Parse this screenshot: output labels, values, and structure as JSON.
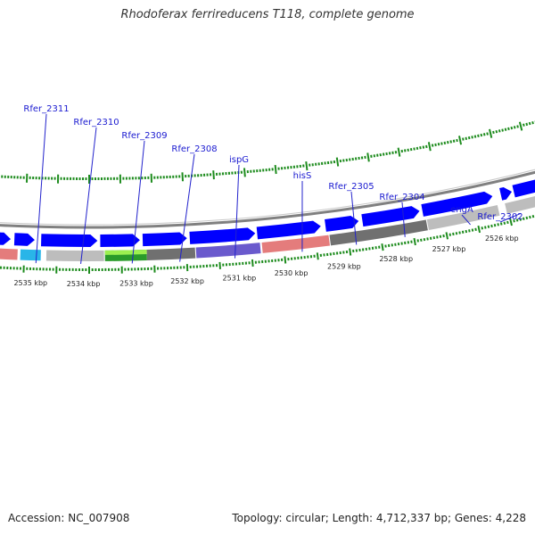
{
  "title": "Rhodoferax ferrireducens T118, complete genome",
  "accession": "Accession: NC_007908",
  "stats": "Topology: circular; Length: 4,712,337 bp; Genes: 4,228",
  "colors": {
    "backbone": "#808080",
    "ticks": "#1e8c1e",
    "cds": "#0000ff",
    "label": "#1a1ad0",
    "label_line": "#2222cc"
  },
  "scale_labels": [
    "2535 kbp",
    "2534 kbp",
    "2533 kbp",
    "2532 kbp",
    "2531 kbp",
    "2530 kbp",
    "2529 kbp",
    "2528 kbp",
    "2527 kbp",
    "2526 kbp"
  ],
  "gene_labels": [
    "Rfer_2311",
    "Rfer_2310",
    "Rfer_2309",
    "Rfer_2308",
    "ispG",
    "hisS",
    "Rfer_2305",
    "Rfer_2304",
    "engA",
    "Rfer_2302"
  ]
}
